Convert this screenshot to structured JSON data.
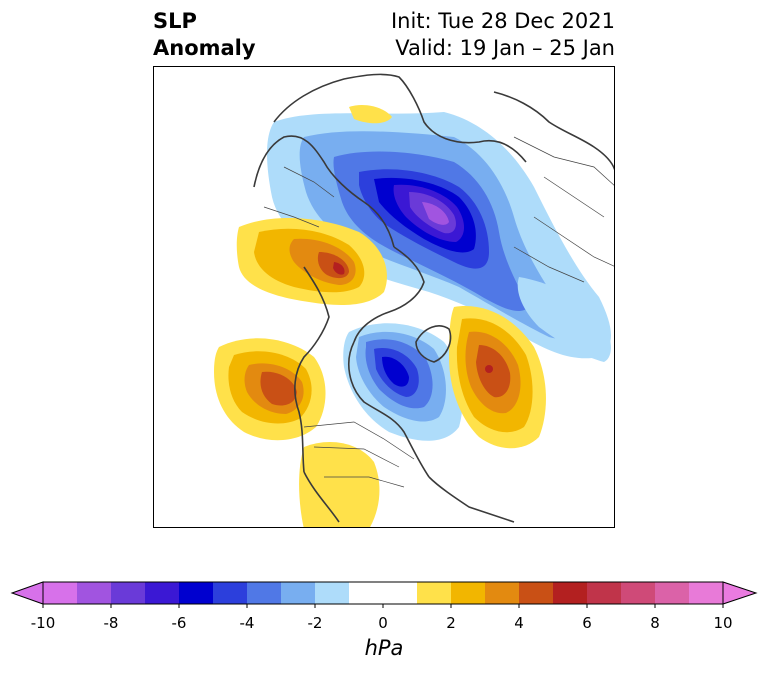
{
  "title": {
    "left_line1": "SLP",
    "left_line2": "Anomaly",
    "right_line1": "Init: Tue 28 Dec 2021",
    "right_line2": "Valid: 19 Jan – 25 Jan"
  },
  "colorbar": {
    "unit": "hPa",
    "ticks": [
      "-10",
      "-8",
      "-6",
      "-4",
      "-2",
      "0",
      "2",
      "4",
      "6",
      "8",
      "10"
    ],
    "bins": [
      {
        "from": -10,
        "to": -9,
        "color": "#d771ea"
      },
      {
        "from": -9,
        "to": -8,
        "color": "#a154e0"
      },
      {
        "from": -8,
        "to": -7,
        "color": "#6a3ad8"
      },
      {
        "from": -7,
        "to": -6,
        "color": "#3b18d4"
      },
      {
        "from": -6,
        "to": -5,
        "color": "#0000cf"
      },
      {
        "from": -5,
        "to": -4,
        "color": "#2c3fdc"
      },
      {
        "from": -4,
        "to": -3,
        "color": "#5078e6"
      },
      {
        "from": -3,
        "to": -2,
        "color": "#78aef0"
      },
      {
        "from": -2,
        "to": -1,
        "color": "#aedcfa"
      },
      {
        "from": -1,
        "to": 1,
        "color": "#ffffff"
      },
      {
        "from": 1,
        "to": 2,
        "color": "#ffe14a"
      },
      {
        "from": 2,
        "to": 3,
        "color": "#f2b600"
      },
      {
        "from": 3,
        "to": 4,
        "color": "#e38a10"
      },
      {
        "from": 4,
        "to": 5,
        "color": "#c95015"
      },
      {
        "from": 5,
        "to": 6,
        "color": "#b32020"
      },
      {
        "from": 6,
        "to": 7,
        "color": "#c0344a"
      },
      {
        "from": 7,
        "to": 8,
        "color": "#cf4a78"
      },
      {
        "from": 8,
        "to": 9,
        "color": "#db62a8"
      },
      {
        "from": 9,
        "to": 10,
        "color": "#e87ad8"
      }
    ],
    "extend_low_color": "#d771ea",
    "extend_high_color": "#ea7be0"
  }
}
